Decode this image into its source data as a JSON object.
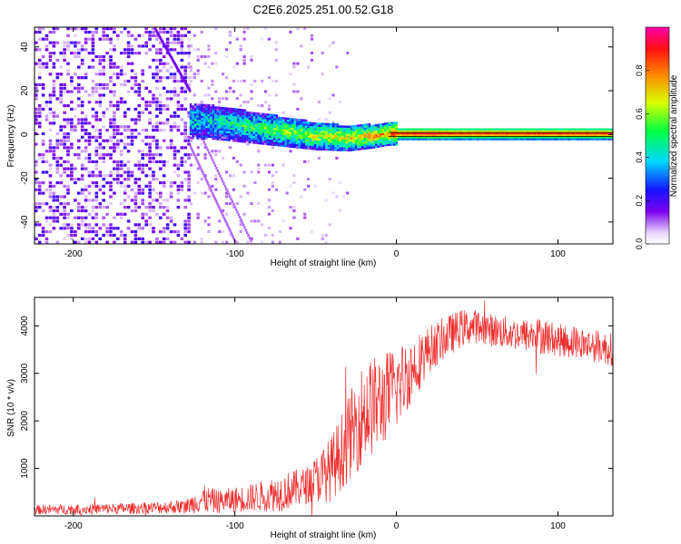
{
  "page_title": "C2E6.2025.251.00.52.G18",
  "chart_data": [
    {
      "type": "heatmap",
      "xlabel": "Height of straight line (km)",
      "ylabel": "Frequency (Hz)",
      "xlim": [
        -224,
        134
      ],
      "ylim": [
        -50,
        49
      ],
      "x_ticks": [
        -200,
        -100,
        0,
        100
      ],
      "y_ticks": [
        -40,
        -20,
        0,
        20,
        40
      ],
      "colorbar": {
        "label": "Normalized spectral amplitude",
        "range": [
          0.0,
          1.0
        ],
        "ticks": [
          0.0,
          0.2,
          0.4,
          0.6,
          0.8
        ]
      },
      "ridge_frequency_hz": 0,
      "noisy_region_end_km": -128,
      "trace_km": [
        -224,
        -210,
        -190,
        -170,
        -150,
        -128,
        -110,
        -90,
        -70,
        -50,
        -30,
        -15,
        -5,
        0,
        20,
        40,
        60,
        80,
        100,
        134
      ],
      "trace_freq_hz": [
        0,
        0,
        0,
        0,
        0,
        6,
        5,
        3,
        1,
        -1,
        -2,
        -1,
        0,
        0,
        0,
        0,
        0,
        0,
        0,
        0
      ],
      "trace_amplitude": [
        0.2,
        0.2,
        0.2,
        0.2,
        0.2,
        0.4,
        0.45,
        0.5,
        0.6,
        0.65,
        0.7,
        0.75,
        0.8,
        0.9,
        0.95,
        0.9,
        0.9,
        0.9,
        0.9,
        0.9
      ]
    },
    {
      "type": "line",
      "xlabel": "Height of straight line (km)",
      "ylabel": "SNR (10 * v/v)",
      "xlim": [
        -224,
        134
      ],
      "ylim": [
        0,
        4600
      ],
      "x_ticks": [
        -200,
        -100,
        0,
        100
      ],
      "y_ticks": [
        1000,
        2000,
        3000,
        4000
      ],
      "series_color": "#ee2e2e",
      "envelope_x": [
        -224,
        -200,
        -160,
        -130,
        -120,
        -110,
        -90,
        -70,
        -55,
        -40,
        -30,
        -20,
        -10,
        0,
        10,
        20,
        30,
        40,
        50,
        60,
        70,
        80,
        90,
        100,
        110,
        120,
        134
      ],
      "envelope_mean": [
        130,
        140,
        160,
        200,
        350,
        300,
        380,
        500,
        650,
        1000,
        1600,
        2200,
        2400,
        2700,
        3100,
        3500,
        3750,
        3950,
        4000,
        3900,
        3850,
        3800,
        3800,
        3700,
        3650,
        3600,
        3500
      ],
      "envelope_spread": [
        100,
        110,
        120,
        150,
        300,
        250,
        300,
        400,
        400,
        700,
        900,
        1100,
        1000,
        900,
        700,
        500,
        450,
        400,
        350,
        350,
        350,
        350,
        400,
        350,
        350,
        350,
        350
      ]
    }
  ]
}
